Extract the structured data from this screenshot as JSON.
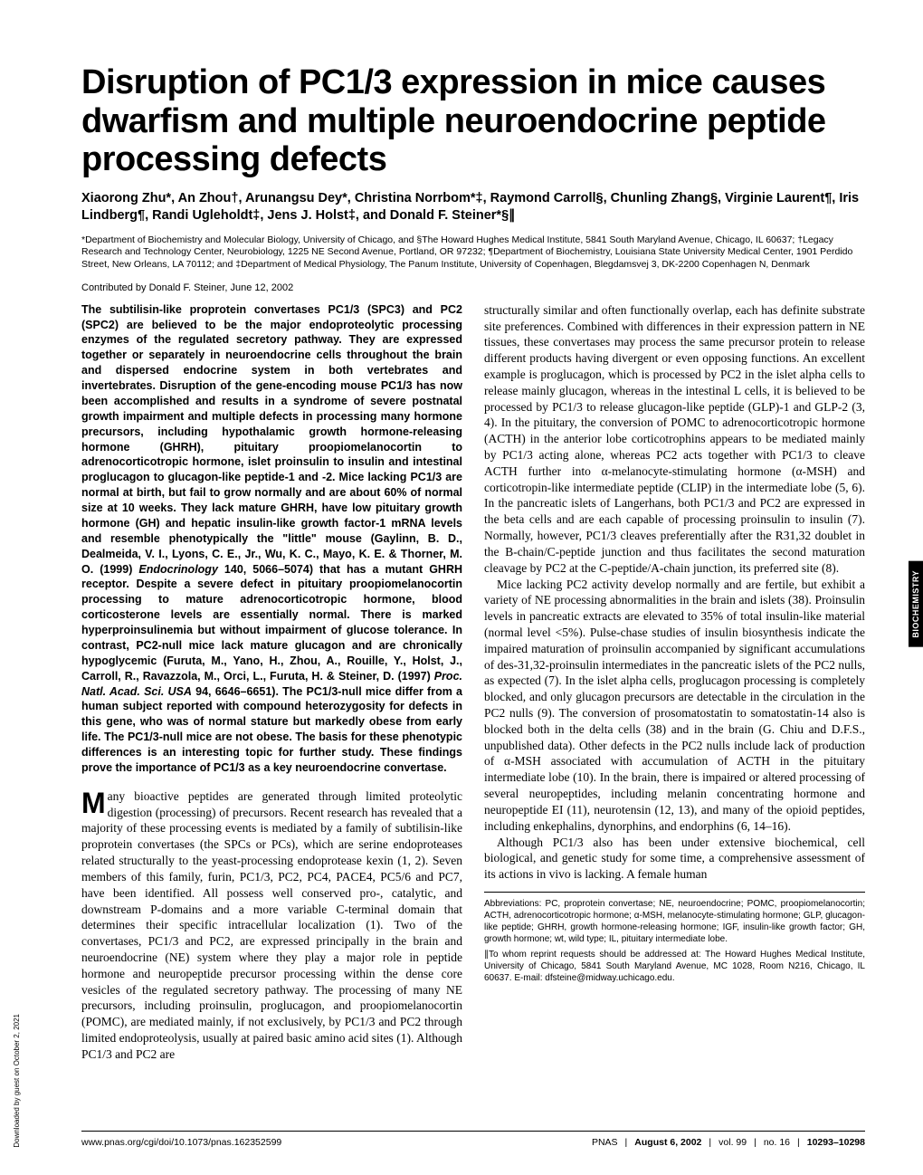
{
  "title": "Disruption of PC1/3 expression in mice causes dwarfism and multiple neuroendocrine peptide processing defects",
  "authors": "Xiaorong Zhu*, An Zhou†, Arunangsu Dey*, Christina Norrbom*‡, Raymond Carroll§, Chunling Zhang§, Virginie Laurent¶, Iris Lindberg¶, Randi Ugleholdt‡, Jens J. Holst‡, and Donald F. Steiner*§∥",
  "affiliations": "*Department of Biochemistry and Molecular Biology, University of Chicago, and §The Howard Hughes Medical Institute, 5841 South Maryland Avenue, Chicago, IL 60637; †Legacy Research and Technology Center, Neurobiology, 1225 NE Second Avenue, Portland, OR 97232; ¶Department of Biochemistry, Louisiana State University Medical Center, 1901 Perdido Street, New Orleans, LA 70112; and ‡Department of Medical Physiology, The Panum Institute, University of Copenhagen, Blegdamsvej 3, DK-2200 Copenhagen N, Denmark",
  "contributed": "Contributed by Donald F. Steiner, June 12, 2002",
  "abstract_pre": "The subtilisin-like proprotein convertases PC1/3 (SPC3) and PC2 (SPC2) are believed to be the major endoproteolytic processing enzymes of the regulated secretory pathway. They are expressed together or separately in neuroendocrine cells throughout the brain and dispersed endocrine system in both vertebrates and invertebrates. Disruption of the gene-encoding mouse PC1/3 has now been accomplished and results in a syndrome of severe postnatal growth impairment and multiple defects in processing many hormone precursors, including hypothalamic growth hormone-releasing hormone (GHRH), pituitary proopiomelanocortin to adrenocorticotropic hormone, islet proinsulin to insulin and intestinal proglucagon to glucagon-like peptide-1 and -2. Mice lacking PC1/3 are normal at birth, but fail to grow normally and are about 60% of normal size at 10 weeks. They lack mature GHRH, have low pituitary growth hormone (GH) and hepatic insulin-like growth factor-1 mRNA levels and resemble phenotypically the \"little\" mouse (Gaylinn, B. D., Dealmeida, V. I., Lyons, C. E., Jr., Wu, K. C., Mayo, K. E. & Thorner, M. O. (1999) ",
  "abstract_ital1": "Endocrinology",
  "abstract_mid1": " 140, 5066–5074) that has a mutant GHRH receptor. Despite a severe defect in pituitary proopiomelanocortin processing to mature adrenocorticotropic hormone, blood corticosterone levels are essentially normal. There is marked hyperproinsulinemia but without impairment of glucose tolerance. In contrast, PC2-null mice lack mature glucagon and are chronically hypoglycemic (Furuta, M., Yano, H., Zhou, A., Rouille, Y., Holst, J., Carroll, R., Ravazzola, M., Orci, L., Furuta, H. & Steiner, D. (1997) ",
  "abstract_ital2": "Proc. Natl. Acad. Sci. USA",
  "abstract_post": " 94, 6646–6651). The PC1/3-null mice differ from a human subject reported with compound heterozygosity for defects in this gene, who was of normal stature but markedly obese from early life. The PC1/3-null mice are not obese. The basis for these phenotypic differences is an interesting topic for further study. These findings prove the importance of PC1/3 as a key neuroendocrine convertase.",
  "body": {
    "p1_dropcap": "M",
    "p1": "any bioactive peptides are generated through limited proteolytic digestion (processing) of precursors. Recent research has revealed that a majority of these processing events is mediated by a family of subtilisin-like proprotein convertases (the SPCs or PCs), which are serine endoproteases related structurally to the yeast-processing endoprotease kexin (1, 2). Seven members of this family, furin, PC1/3, PC2, PC4, PACE4, PC5/6 and PC7, have been identified. All possess well conserved pro-, catalytic, and downstream P-domains and a more variable C-terminal domain that determines their specific intracellular localization (1). Two of the convertases, PC1/3 and PC2, are expressed principally in the brain and neuroendocrine (NE) system where they play a major role in peptide hormone and neuropeptide precursor processing within the dense core vesicles of the regulated secretory pathway. The processing of many NE precursors, including proinsulin, proglucagon, and proopiomelanocortin (POMC), are mediated mainly, if not exclusively, by PC1/3 and PC2 through limited endoproteolysis, usually at paired basic amino acid sites (1). Although PC1/3 and PC2 are",
    "p2": "structurally similar and often functionally overlap, each has definite substrate site preferences. Combined with differences in their expression pattern in NE tissues, these convertases may process the same precursor protein to release different products having divergent or even opposing functions. An excellent example is proglucagon, which is processed by PC2 in the islet alpha cells to release mainly glucagon, whereas in the intestinal L cells, it is believed to be processed by PC1/3 to release glucagon-like peptide (GLP)-1 and GLP-2 (3, 4). In the pituitary, the conversion of POMC to adrenocorticotropic hormone (ACTH) in the anterior lobe corticotrophins appears to be mediated mainly by PC1/3 acting alone, whereas PC2 acts together with PC1/3 to cleave ACTH further into α-melanocyte-stimulating hormone (α-MSH) and corticotropin-like intermediate peptide (CLIP) in the intermediate lobe (5, 6). In the pancreatic islets of Langerhans, both PC1/3 and PC2 are expressed in the beta cells and are each capable of processing proinsulin to insulin (7). Normally, however, PC1/3 cleaves preferentially after the R31,32 doublet in the B-chain/C-peptide junction and thus facilitates the second maturation cleavage by PC2 at the C-peptide/A-chain junction, its preferred site (8).",
    "p3": "Mice lacking PC2 activity develop normally and are fertile, but exhibit a variety of NE processing abnormalities in the brain and islets (38). Proinsulin levels in pancreatic extracts are elevated to 35% of total insulin-like material (normal level <5%). Pulse-chase studies of insulin biosynthesis indicate the impaired maturation of proinsulin accompanied by significant accumulations of des-31,32-proinsulin intermediates in the pancreatic islets of the PC2 nulls, as expected (7). In the islet alpha cells, proglucagon processing is completely blocked, and only glucagon precursors are detectable in the circulation in the PC2 nulls (9). The conversion of prosomatostatin to somatostatin-14 also is blocked both in the delta cells (38) and in the brain (G. Chiu and D.F.S., unpublished data). Other defects in the PC2 nulls include lack of production of α-MSH associated with accumulation of ACTH in the pituitary intermediate lobe (10). In the brain, there is impaired or altered processing of several neuropeptides, including melanin concentrating hormone and neuropeptide EI (11), neurotensin (12, 13), and many of the opioid peptides, including enkephalins, dynorphins, and endorphins (6, 14–16).",
    "p4": "Although PC1/3 also has been under extensive biochemical, cell biological, and genetic study for some time, a comprehensive assessment of its actions in vivo is lacking. A female human"
  },
  "footnotes": {
    "abbr": "Abbreviations: PC, proprotein convertase; NE, neuroendocrine; POMC, proopiomelanocortin; ACTH, adrenocorticotropic hormone; α-MSH, melanocyte-stimulating hormone; GLP, glucagon-like peptide; GHRH, growth hormone-releasing hormone; IGF, insulin-like growth factor; GH, growth hormone; wt, wild type; IL, pituitary intermediate lobe.",
    "corr": "∥To whom reprint requests should be addressed at: The Howard Hughes Medical Institute, University of Chicago, 5841 South Maryland Avenue, MC 1028, Room N216, Chicago, IL 60637. E-mail: dfsteine@midway.uchicago.edu."
  },
  "footer": {
    "left": "www.pnas.org/cgi/doi/10.1073/pnas.162352599",
    "right_pnas": "PNAS",
    "right_date": "August 6, 2002",
    "right_vol": "vol. 99",
    "right_no": "no. 16",
    "right_pages": "10293–10298"
  },
  "side_tab": "BIOCHEMISTRY",
  "side_note": "Downloaded by guest on October 2, 2021"
}
